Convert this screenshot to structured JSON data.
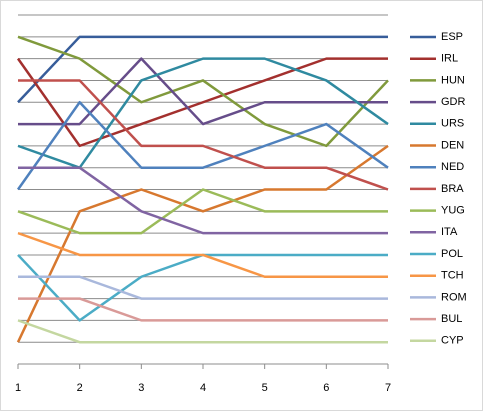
{
  "chart_data": {
    "type": "line",
    "categories": [
      "1",
      "2",
      "3",
      "4",
      "5",
      "6",
      "7"
    ],
    "ylim": [
      16,
      0
    ],
    "yticks": [
      0,
      1,
      2,
      3,
      4,
      5,
      6,
      7,
      8,
      9,
      10,
      11,
      12,
      13,
      14,
      15,
      16
    ],
    "grid": true,
    "legend": "right",
    "series": [
      {
        "name": "ESP",
        "color": "#375d9a",
        "values": [
          4,
          1,
          1,
          1,
          1,
          1,
          1
        ]
      },
      {
        "name": "IRL",
        "color": "#a3302e",
        "values": [
          2,
          6,
          5,
          4,
          3,
          2,
          2
        ]
      },
      {
        "name": "HUN",
        "color": "#809a3c",
        "values": [
          1,
          2,
          4,
          3,
          5,
          6,
          3
        ]
      },
      {
        "name": "GDR",
        "color": "#664d8a",
        "values": [
          5,
          5,
          2,
          5,
          4,
          4,
          4
        ]
      },
      {
        "name": "URS",
        "color": "#2f8aa0",
        "values": [
          6,
          7,
          3,
          2,
          2,
          3,
          5
        ]
      },
      {
        "name": "DEN",
        "color": "#d7782f",
        "values": [
          15,
          9,
          8,
          9,
          8,
          8,
          6
        ]
      },
      {
        "name": "NED",
        "color": "#4f81bd",
        "values": [
          8,
          4,
          7,
          7,
          6,
          5,
          7
        ]
      },
      {
        "name": "BRA",
        "color": "#c0504d",
        "values": [
          3,
          3,
          6,
          6,
          7,
          7,
          8
        ]
      },
      {
        "name": "YUG",
        "color": "#9bbb59",
        "values": [
          9,
          10,
          10,
          8,
          9,
          9,
          9
        ]
      },
      {
        "name": "ITA",
        "color": "#8064a2",
        "values": [
          7,
          7,
          9,
          10,
          10,
          10,
          10
        ]
      },
      {
        "name": "POL",
        "color": "#4bacc6",
        "values": [
          11,
          14,
          12,
          11,
          11,
          11,
          11
        ]
      },
      {
        "name": "TCH",
        "color": "#f79646",
        "values": [
          10,
          11,
          11,
          11,
          12,
          12,
          12
        ]
      },
      {
        "name": "ROM",
        "color": "#a9b8dc",
        "values": [
          12,
          12,
          13,
          13,
          13,
          13,
          13
        ]
      },
      {
        "name": "BUL",
        "color": "#d99a98",
        "values": [
          13,
          13,
          14,
          14,
          14,
          14,
          14
        ]
      },
      {
        "name": "CYP",
        "color": "#c4d7a0",
        "values": [
          14,
          15,
          15,
          15,
          15,
          15,
          15
        ]
      }
    ]
  }
}
